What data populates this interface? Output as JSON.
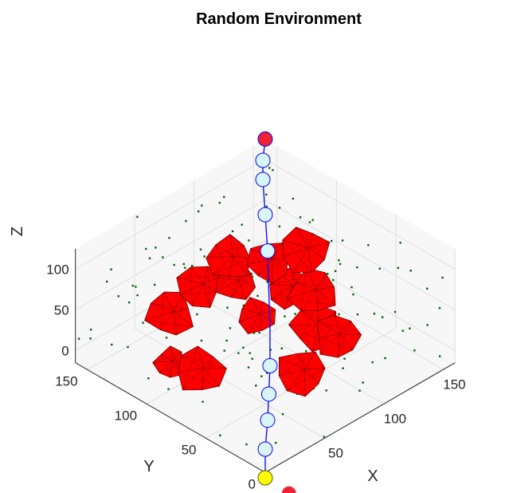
{
  "chart_data": {
    "type": "scatter3d",
    "title": "Random Environment",
    "xlabel": "X",
    "ylabel": "Y",
    "zlabel": "Z",
    "xlim": [
      0,
      160
    ],
    "ylim": [
      0,
      160
    ],
    "zlim": [
      -15,
      125
    ],
    "x_ticks": [
      "50",
      "100",
      "150"
    ],
    "y_ticks": [
      "0",
      "50",
      "100",
      "150"
    ],
    "z_ticks": [
      "0",
      "50",
      "100"
    ],
    "grid": true,
    "view": "isometric, looking from +X/+Y corner down",
    "colors": {
      "obstacle_fill": "#ff0000",
      "obstacle_edge": "#3a0000",
      "path_line": "#0000ff",
      "waypoint_fill": "#d9f6f6",
      "waypoint_edge": "#0000ff",
      "start_marker": "#ffff00",
      "goal_marker": "#ee2233",
      "scatter_points": "#006400",
      "grid": "#dedede",
      "pane": "#f7f7f7"
    },
    "start": {
      "x": 5,
      "y": 5,
      "z": -30
    },
    "goal": {
      "x": 160,
      "y": 160,
      "z": 125
    },
    "path": [
      {
        "x": 5,
        "y": 5,
        "z": -30
      },
      {
        "x": 20,
        "y": 20,
        "z": -20
      },
      {
        "x": 35,
        "y": 33,
        "z": -8
      },
      {
        "x": 48,
        "y": 45,
        "z": 3
      },
      {
        "x": 62,
        "y": 58,
        "z": 15
      },
      {
        "x": 78,
        "y": 74,
        "z": 32
      },
      {
        "x": 95,
        "y": 92,
        "z": 52
      },
      {
        "x": 112,
        "y": 110,
        "z": 70
      },
      {
        "x": 128,
        "y": 128,
        "z": 86
      },
      {
        "x": 142,
        "y": 144,
        "z": 104
      },
      {
        "x": 150,
        "y": 152,
        "z": 114
      },
      {
        "x": 160,
        "y": 160,
        "z": 125
      }
    ],
    "waypoints": [
      {
        "x": 20,
        "y": 20,
        "z": -20
      },
      {
        "x": 35,
        "y": 33,
        "z": -8
      },
      {
        "x": 48,
        "y": 45,
        "z": 3
      },
      {
        "x": 62,
        "y": 58,
        "z": 15
      },
      {
        "x": 112,
        "y": 110,
        "z": 70
      },
      {
        "x": 128,
        "y": 128,
        "z": 86
      },
      {
        "x": 142,
        "y": 144,
        "z": 104
      },
      {
        "x": 150,
        "y": 152,
        "z": 114
      }
    ],
    "obstacles": [
      {
        "x": 40,
        "y": 120,
        "z": 45,
        "r": 18
      },
      {
        "x": 55,
        "y": 110,
        "z": 75,
        "r": 17
      },
      {
        "x": 80,
        "y": 110,
        "z": 88,
        "r": 17
      },
      {
        "x": 98,
        "y": 95,
        "z": 82,
        "r": 16
      },
      {
        "x": 70,
        "y": 95,
        "z": 80,
        "r": 15
      },
      {
        "x": 100,
        "y": 80,
        "z": 60,
        "r": 16
      },
      {
        "x": 128,
        "y": 95,
        "z": 70,
        "r": 18
      },
      {
        "x": 120,
        "y": 80,
        "z": 38,
        "r": 18
      },
      {
        "x": 112,
        "y": 70,
        "z": 10,
        "r": 18
      },
      {
        "x": 125,
        "y": 65,
        "z": -8,
        "r": 17
      },
      {
        "x": 90,
        "y": 60,
        "z": -18,
        "r": 18
      },
      {
        "x": 45,
        "y": 100,
        "z": -12,
        "r": 18
      },
      {
        "x": 30,
        "y": 110,
        "z": 2,
        "r": 12
      },
      {
        "x": 78,
        "y": 85,
        "z": 40,
        "r": 14
      }
    ]
  }
}
